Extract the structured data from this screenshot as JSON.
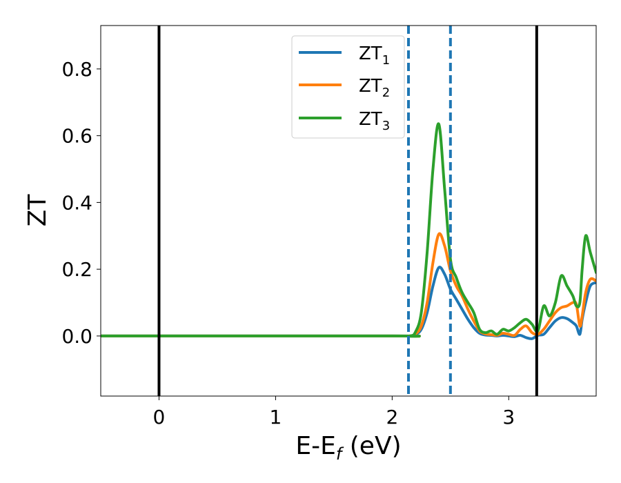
{
  "chart_data": {
    "type": "line",
    "title": "",
    "xlabel": {
      "main": "E-E",
      "sub": "f",
      "unit": " (eV)"
    },
    "ylabel": "ZT",
    "xlim": [
      -0.5,
      3.75
    ],
    "ylim": [
      -0.18,
      0.93
    ],
    "xticks": [
      0,
      1,
      2,
      3
    ],
    "xtick_labels": [
      "0",
      "1",
      "2",
      "3"
    ],
    "yticks": [
      0.0,
      0.2,
      0.4,
      0.6,
      0.8
    ],
    "ytick_labels": [
      "0.0",
      "0.2",
      "0.4",
      "0.6",
      "0.8"
    ],
    "grid": false,
    "legend_position": "top-center",
    "vlines": [
      {
        "x": 0.0,
        "style": "solid",
        "color": "#000000"
      },
      {
        "x": 3.24,
        "style": "solid",
        "color": "#000000"
      },
      {
        "x": 2.14,
        "style": "dashed",
        "color": "#1f77b4"
      },
      {
        "x": 2.5,
        "style": "dashed",
        "color": "#1f77b4"
      }
    ],
    "series": [
      {
        "name_main": "ZT",
        "name_sub": "1",
        "color": "#1f77b4",
        "x": [
          -0.5,
          2.0,
          2.15,
          2.2,
          2.25,
          2.3,
          2.35,
          2.4,
          2.45,
          2.5,
          2.55,
          2.6,
          2.65,
          2.7,
          2.75,
          2.8,
          2.85,
          2.9,
          2.95,
          3.0,
          3.05,
          3.1,
          3.15,
          3.2,
          3.25,
          3.3,
          3.35,
          3.4,
          3.45,
          3.5,
          3.55,
          3.58,
          3.61,
          3.63,
          3.66,
          3.7,
          3.75
        ],
        "y": [
          0.0,
          0.0,
          0.0,
          0.004,
          0.02,
          0.07,
          0.15,
          0.205,
          0.185,
          0.14,
          0.11,
          0.08,
          0.05,
          0.025,
          0.008,
          0.003,
          0.002,
          0.0,
          0.002,
          0.0,
          -0.002,
          0.002,
          -0.005,
          -0.008,
          0.002,
          0.005,
          0.025,
          0.045,
          0.055,
          0.052,
          0.04,
          0.03,
          0.005,
          0.05,
          0.1,
          0.15,
          0.16
        ]
      },
      {
        "name_main": "ZT",
        "name_sub": "2",
        "color": "#ff7f0e",
        "x": [
          -0.5,
          2.0,
          2.15,
          2.2,
          2.25,
          2.3,
          2.35,
          2.4,
          2.45,
          2.5,
          2.55,
          2.6,
          2.65,
          2.7,
          2.75,
          2.8,
          2.85,
          2.9,
          2.95,
          3.0,
          3.05,
          3.1,
          3.15,
          3.2,
          3.25,
          3.3,
          3.35,
          3.4,
          3.45,
          3.5,
          3.55,
          3.58,
          3.61,
          3.63,
          3.66,
          3.7,
          3.75
        ],
        "y": [
          0.0,
          0.0,
          0.0,
          0.006,
          0.03,
          0.1,
          0.22,
          0.305,
          0.27,
          0.195,
          0.15,
          0.12,
          0.08,
          0.045,
          0.015,
          0.006,
          0.004,
          0.002,
          0.008,
          0.005,
          0.002,
          0.02,
          0.03,
          0.01,
          0.005,
          0.02,
          0.045,
          0.07,
          0.085,
          0.09,
          0.1,
          0.095,
          0.03,
          0.06,
          0.13,
          0.17,
          0.165
        ]
      },
      {
        "name_main": "ZT",
        "name_sub": "3",
        "color": "#2ca02c",
        "x": [
          -0.5,
          2.0,
          2.15,
          2.2,
          2.25,
          2.3,
          2.35,
          2.4,
          2.45,
          2.5,
          2.55,
          2.6,
          2.65,
          2.7,
          2.75,
          2.8,
          2.85,
          2.9,
          2.95,
          3.0,
          3.05,
          3.1,
          3.15,
          3.2,
          3.25,
          3.3,
          3.35,
          3.4,
          3.45,
          3.5,
          3.55,
          3.58,
          3.61,
          3.63,
          3.66,
          3.7,
          3.75
        ],
        "y": [
          0.0,
          0.0,
          0.0,
          0.012,
          0.07,
          0.25,
          0.5,
          0.635,
          0.44,
          0.23,
          0.175,
          0.13,
          0.1,
          0.07,
          0.02,
          0.01,
          0.015,
          0.005,
          0.02,
          0.015,
          0.025,
          0.04,
          0.05,
          0.035,
          0.015,
          0.09,
          0.06,
          0.1,
          0.18,
          0.15,
          0.12,
          0.09,
          0.1,
          0.2,
          0.3,
          0.25,
          0.19
        ]
      }
    ]
  }
}
